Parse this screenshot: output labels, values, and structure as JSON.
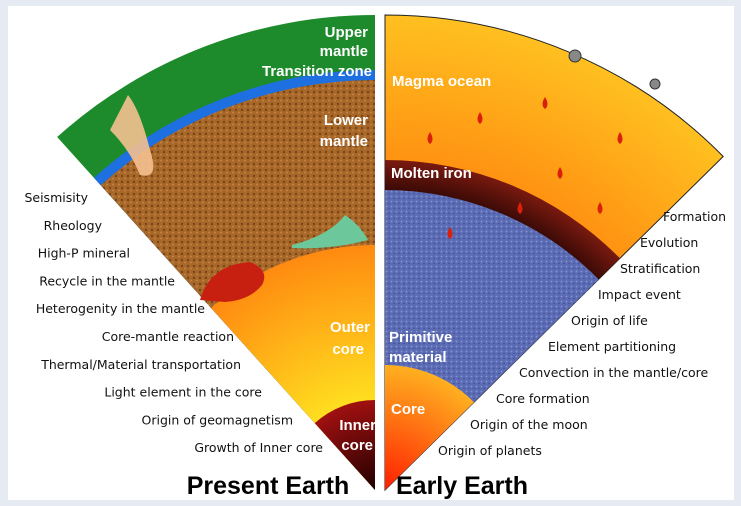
{
  "present": {
    "title": "Present Earth",
    "layers": {
      "upper_mantle": [
        "Upper",
        "mantle"
      ],
      "transition_zone": "Transition zone",
      "lower_mantle": [
        "Lower",
        "mantle"
      ],
      "outer_core": [
        "Outer",
        "core"
      ],
      "inner_core": [
        "Inner",
        "core"
      ]
    },
    "topics": [
      "Seismisity",
      "Rheology",
      "High-P mineral",
      "Recycle in the mantle",
      "Heterogenity in the mantle",
      "Core-mantle reaction",
      "Thermal/Material transportation",
      "Light element in the core",
      "Origin of geomagnetism",
      "Growth of Inner core"
    ]
  },
  "early": {
    "title": "Early Earth",
    "layers": {
      "magma_ocean": "Magma ocean",
      "molten_iron": "Molten iron",
      "primitive_material": [
        "Primitive",
        "material"
      ],
      "core": "Core"
    },
    "topics": [
      "Formation",
      "Evolution",
      "Stratification",
      "Impact event",
      "Origin of life",
      "Element partitioning",
      "Convection in the mantle/core",
      "Core formation",
      "Origin of the moon",
      "Origin of planets"
    ]
  }
}
